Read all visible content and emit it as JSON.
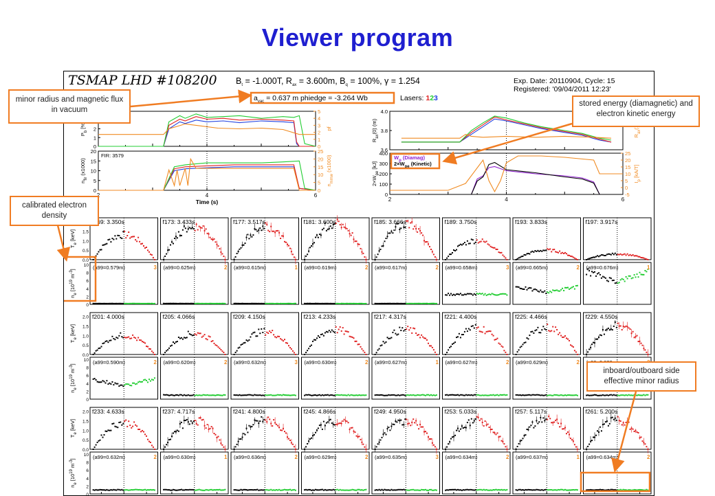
{
  "slide_title": "Viewer program",
  "header": {
    "program": "TSMAP LHD #108200",
    "params": "B",
    "params_t_sub": "t",
    "params_text_1": " = -1.000T, R",
    "params_ax_sub": "ax",
    "params_text_2": " = 3.600m, B",
    "params_q_sub": "q",
    "params_text_3": " = 100%, ",
    "gamma": "γ = 1.254",
    "vac_label": "a",
    "vac_sub": "vac",
    "vac_value": " = 0.637  m phiedge = -3.264 Wb",
    "exp_date": "Exp. Date: 20110904, Cycle: 15",
    "registered": "Registered: '09/04/2011 12:23'",
    "lasers_label": "Lasers:",
    "lasers": [
      "1",
      "2",
      "3"
    ]
  },
  "colors": {
    "title": "#1f1fd0",
    "callout_border": "#f07c22",
    "red": "#e02020",
    "green": "#20cc30",
    "blue": "#2040e0",
    "orange": "#f08a20",
    "purple": "#9020d0",
    "black": "#000000"
  },
  "callouts": {
    "minor_radius": "minor radius and magnetic flux in vacuum",
    "stored_energy": "stored energy (diamagnetic) and electron kinetic energy",
    "calibrated": "calibrated electron density",
    "inboard": "inboard/outboard side effective minor radius"
  },
  "chart_data": [
    {
      "type": "line",
      "panel": "beam-power",
      "xlim": [
        2,
        6
      ],
      "ylabel": "P",
      "ylabel_sub": "b",
      "ylabel_unit": " [%]",
      "ylim": [
        0,
        4
      ],
      "yticks": [
        "0",
        "1",
        "2",
        "3",
        "4"
      ],
      "y2label": "pf",
      "y2lim": [
        0,
        5
      ],
      "y2ticks": [
        "0",
        "1",
        "2",
        "3",
        "4",
        "5"
      ],
      "series": [
        {
          "color": "blue",
          "x": [
            2.0,
            3.2,
            3.3,
            3.5,
            3.6,
            3.8,
            4.0,
            4.3,
            4.6,
            5.0,
            5.4,
            5.6,
            5.65,
            5.7,
            6.0
          ],
          "y": [
            0,
            0,
            2.0,
            2.8,
            2.6,
            3.0,
            2.8,
            2.9,
            2.7,
            2.9,
            2.8,
            2.7,
            0.3,
            0,
            0
          ]
        },
        {
          "color": "red",
          "x": [
            2.0,
            3.2,
            3.3,
            3.5,
            3.6,
            3.8,
            4.0,
            4.3,
            4.6,
            5.0,
            5.4,
            5.6,
            5.65,
            5.7,
            6.0
          ],
          "y": [
            0,
            0,
            2.4,
            3.1,
            2.9,
            3.4,
            3.1,
            3.2,
            3.0,
            3.1,
            3.0,
            2.9,
            0.5,
            0,
            0
          ]
        },
        {
          "color": "green",
          "x": [
            2.0,
            3.2,
            3.3,
            3.5,
            3.6,
            3.8,
            4.0,
            4.3,
            4.6,
            5.0,
            5.4,
            5.6,
            5.7,
            5.8,
            6.0
          ],
          "y": [
            0,
            0,
            2.8,
            3.5,
            3.2,
            3.7,
            3.3,
            3.4,
            3.5,
            3.2,
            3.4,
            3.3,
            3.5,
            0.3,
            0
          ]
        },
        {
          "color": "orange",
          "axis": "y2",
          "x": [
            2.0,
            3.2,
            3.3,
            3.6,
            3.9,
            4.2,
            4.6,
            5.0,
            5.4,
            5.7,
            6.0
          ],
          "y": [
            1.7,
            1.7,
            2.5,
            3.2,
            2.9,
            2.6,
            2.5,
            2.6,
            2.4,
            1.7,
            1.7
          ]
        }
      ]
    },
    {
      "type": "line",
      "panel": "fir-density",
      "xlim": [
        2,
        6
      ],
      "ylabel": "n",
      "ylabel_sub": "fir",
      "ylabel_unit": " (x1000)",
      "ylim": [
        0,
        20
      ],
      "yticks": [
        "0",
        "5",
        "10",
        "15",
        "20"
      ],
      "y2label": "n",
      "y2label_sub": "mmw",
      "y2label_unit": " (x1000)",
      "y2lim": [
        0,
        25
      ],
      "y2ticks": [
        "0",
        "5",
        "10",
        "15",
        "20",
        "25"
      ],
      "annotation": "FIR: 3579",
      "xlabel": "Time (s)",
      "xticks": [
        "2",
        "4",
        "6"
      ],
      "series": [
        {
          "color": "blue",
          "x": [
            2.0,
            3.2,
            3.4,
            3.6,
            4.0,
            4.5,
            5.0,
            5.4,
            5.6,
            5.7,
            6.0
          ],
          "y": [
            0,
            0,
            10,
            11,
            11.5,
            12,
            12,
            12,
            12,
            1,
            0
          ]
        },
        {
          "color": "red",
          "x": [
            2.0,
            3.2,
            3.4,
            3.6,
            4.0,
            4.5,
            5.0,
            5.4,
            5.6,
            5.7,
            6.0
          ],
          "y": [
            0,
            0,
            11,
            12,
            12.5,
            13,
            13,
            13,
            13,
            1,
            0
          ]
        },
        {
          "color": "green",
          "x": [
            2.0,
            3.2,
            3.4,
            3.6,
            4.0,
            4.5,
            5.0,
            5.4,
            5.7,
            5.8,
            6.0
          ],
          "y": [
            0,
            0,
            12,
            13,
            14,
            14,
            14,
            14.5,
            15,
            1,
            0
          ]
        },
        {
          "color": "orange",
          "axis": "y2",
          "x": [
            2.0,
            3.2,
            3.3,
            3.4,
            3.45,
            3.5,
            3.6,
            3.65,
            3.7,
            3.8,
            4.0,
            4.5,
            5.0,
            5.4,
            5.6,
            5.7,
            6.0
          ],
          "y": [
            0,
            0,
            13,
            3,
            13,
            3,
            14,
            3,
            20,
            14,
            14,
            14,
            14,
            14,
            14,
            0,
            0
          ]
        }
      ]
    },
    {
      "type": "line",
      "panel": "axis-position",
      "xlim": [
        2,
        6
      ],
      "ylabel": "R",
      "ylabel_sub": "ax",
      "ylabel_unit": "(0) (m)",
      "ylim": [
        3.6,
        4.0
      ],
      "yticks": [
        "3.6",
        "3.8",
        "4.0"
      ],
      "y2label": "R",
      "y2label_sub": "ax",
      "y2label_unit": "(1)",
      "series": [
        {
          "color": "blue",
          "x": [
            2.2,
            3.2,
            3.4,
            3.6,
            3.8,
            4.0,
            4.3,
            4.6,
            5.0,
            5.3,
            5.6,
            5.8
          ],
          "y": [
            3.68,
            3.68,
            3.76,
            3.84,
            3.92,
            3.9,
            3.86,
            3.82,
            3.78,
            3.75,
            3.7,
            3.68
          ]
        },
        {
          "color": "red",
          "x": [
            2.2,
            3.2,
            3.4,
            3.6,
            3.8,
            4.0,
            4.3,
            4.6,
            5.0,
            5.3,
            5.6,
            5.8
          ],
          "y": [
            3.68,
            3.68,
            3.78,
            3.86,
            3.94,
            3.91,
            3.87,
            3.83,
            3.79,
            3.76,
            3.71,
            3.68
          ]
        },
        {
          "color": "green",
          "x": [
            2.2,
            3.2,
            3.4,
            3.6,
            3.8,
            4.0,
            4.3,
            4.6,
            5.0,
            5.3,
            5.6,
            5.8
          ],
          "y": [
            3.68,
            3.68,
            3.8,
            3.88,
            3.95,
            3.93,
            3.88,
            3.84,
            3.8,
            3.77,
            3.72,
            3.7
          ]
        },
        {
          "color": "orange",
          "x": [
            2.2,
            3.2,
            3.3,
            3.4,
            3.6,
            4.0,
            4.5,
            5.0,
            5.5,
            5.8
          ],
          "y": [
            3.72,
            3.72,
            3.76,
            3.74,
            3.73,
            3.74,
            3.73,
            3.74,
            3.73,
            3.72
          ]
        }
      ]
    },
    {
      "type": "line",
      "panel": "stored-energy",
      "xlim": [
        2,
        6
      ],
      "ylabel": "2×W",
      "ylabel_sub": "pe",
      "ylabel_unit": " [kJ]",
      "ylim": [
        0,
        400
      ],
      "yticks": [
        "0",
        "100",
        "200",
        "300",
        "400"
      ],
      "y2label": "I",
      "y2label_sub": "p",
      "y2label_unit": " [kA/T]",
      "y2lim": [
        -5,
        25
      ],
      "y2ticks": [
        "-5",
        "0",
        "5",
        "10",
        "15",
        "20",
        "25"
      ],
      "xticks": [
        "2",
        "4",
        "6"
      ],
      "legend": [
        {
          "text": "W",
          "sub": "p",
          "text2": " (Diamag)",
          "color": "purple"
        },
        {
          "text": "2×W",
          "sub": "pe",
          "text2": " (Kinetic)",
          "color": "black"
        }
      ],
      "series": [
        {
          "color": "purple",
          "x": [
            2.0,
            3.4,
            3.5,
            3.6,
            3.7,
            3.8,
            4.0,
            4.5,
            5.0,
            5.3,
            5.5,
            5.6,
            6.0
          ],
          "y": [
            0,
            0,
            150,
            180,
            260,
            270,
            230,
            200,
            180,
            160,
            120,
            0,
            0
          ]
        },
        {
          "color": "black",
          "x": [
            2.0,
            3.4,
            3.5,
            3.6,
            3.7,
            3.8,
            4.0,
            4.5,
            5.0,
            5.3,
            5.5,
            5.6,
            6.0
          ],
          "y": [
            0,
            0,
            130,
            170,
            290,
            310,
            240,
            210,
            170,
            150,
            110,
            0,
            0
          ]
        },
        {
          "color": "orange",
          "axis": "y2",
          "x": [
            2.0,
            3.0,
            3.3,
            3.6,
            3.7,
            3.8,
            3.9,
            4.0,
            4.2,
            4.6,
            5.0,
            5.5,
            5.6,
            6.0
          ],
          "y": [
            -2,
            -2,
            3,
            20,
            5,
            -3,
            5,
            18,
            23,
            23,
            22,
            20,
            10,
            10
          ]
        }
      ]
    },
    {
      "type": "scatter",
      "panel": "profile-grid",
      "columns": 8,
      "te_ylabel": "T",
      "te_ylabel_sub": "e",
      "te_ylabel_unit": " [keV]",
      "te_yticks": [
        "0.0",
        "0.5",
        "1.0",
        "1.5",
        "2.0"
      ],
      "ne_ylabel": "n",
      "ne_ylabel_sub": "e",
      "ne_ylabel_unit": " [10",
      "ne_ylabel_exp": "19",
      "ne_ylabel_unit2": " m",
      "ne_ylabel_exp2": "-3",
      "ne_ylabel_end": "]",
      "ne_yticks": [
        "0",
        "2",
        "4",
        "6",
        "8",
        "10"
      ],
      "xlabel": "r",
      "xlabel_sub": "eff",
      "xlabel_unit": " [m]",
      "xticks": [
        "-0.5",
        "0.0",
        "0.5"
      ],
      "frames": [
        {
          "label": "f169: 3.350s",
          "a99": "(a99=0.579m)",
          "laser": "3",
          "te_peak": 1.3,
          "ne_level": 0.2
        },
        {
          "label": "f173: 3.433s",
          "a99": "(a99=0.625m)",
          "laser": "2",
          "te_peak": 1.8,
          "ne_level": 0.2
        },
        {
          "label": "f177: 3.517s",
          "a99": "(a99=0.615m)",
          "laser": "1",
          "te_peak": 1.7,
          "ne_level": 0.2
        },
        {
          "label": "f181: 3.600s",
          "a99": "(a99=0.619m)",
          "laser": "2",
          "te_peak": 1.9,
          "ne_level": 0.2
        },
        {
          "label": "f185: 3.666s",
          "a99": "(a99=0.617m)",
          "laser": "2",
          "te_peak": 1.8,
          "ne_level": 0.2
        },
        {
          "label": "f189: 3.750s",
          "a99": "(a99=0.658m)",
          "laser": "3",
          "te_peak": 1.0,
          "ne_level": 2.5
        },
        {
          "label": "f193: 3.833s",
          "a99": "(a99=0.665m)",
          "laser": "2",
          "te_peak": 0.5,
          "ne_level": 4.0
        },
        {
          "label": "f197: 3.917s",
          "a99": "(a99=0.676m)",
          "laser": "1",
          "te_peak": 0.3,
          "ne_level": 7.5
        },
        {
          "label": "f201: 4.000s",
          "a99": "(a99=0.590m)",
          "laser": "2",
          "te_peak": 1.0,
          "ne_level": 4.5
        },
        {
          "label": "f205: 4.066s",
          "a99": "(a99=0.620m)",
          "laser": "2",
          "te_peak": 1.1,
          "ne_level": 1.0
        },
        {
          "label": "f209: 4.150s",
          "a99": "(a99=0.632m)",
          "laser": "3",
          "te_peak": 1.2,
          "ne_level": 1.0
        },
        {
          "label": "f213: 4.233s",
          "a99": "(a99=0.630m)",
          "laser": "2",
          "te_peak": 1.3,
          "ne_level": 1.0
        },
        {
          "label": "f217: 4.317s",
          "a99": "(a99=0.627m)",
          "laser": "1",
          "te_peak": 1.3,
          "ne_level": 1.0
        },
        {
          "label": "f221: 4.400s",
          "a99": "(a99=0.627m)",
          "laser": "2",
          "te_peak": 1.4,
          "ne_level": 1.0
        },
        {
          "label": "f225: 4.466s",
          "a99": "(a99=0.629m)",
          "laser": "2",
          "te_peak": 1.4,
          "ne_level": 1.0
        },
        {
          "label": "f229: 4.550s",
          "a99": "(a99=0.623m)",
          "laser": "3",
          "te_peak": 1.5,
          "ne_level": 1.0
        },
        {
          "label": "f233: 4.633s",
          "a99": "(a99=0.632m)",
          "laser": "2",
          "te_peak": 1.4,
          "ne_level": 1.0
        },
        {
          "label": "f237: 4.717s",
          "a99": "(a99=0.630m)",
          "laser": "1",
          "te_peak": 1.5,
          "ne_level": 1.0
        },
        {
          "label": "f241: 4.800s",
          "a99": "(a99=0.636m)",
          "laser": "2",
          "te_peak": 1.5,
          "ne_level": 1.0
        },
        {
          "label": "f245: 4.866s",
          "a99": "(a99=0.629m)",
          "laser": "2",
          "te_peak": 1.5,
          "ne_level": 1.0
        },
        {
          "label": "f249: 4.950s",
          "a99": "(a99=0.635m)",
          "laser": "3",
          "te_peak": 1.5,
          "ne_level": 1.0
        },
        {
          "label": "f253: 5.033s",
          "a99": "(a99=0.634m)",
          "laser": "2",
          "te_peak": 1.5,
          "ne_level": 1.0
        },
        {
          "label": "f257: 5.117s",
          "a99": "(a99=0.637m)",
          "laser": "1",
          "te_peak": 1.6,
          "ne_level": 1.0
        },
        {
          "label": "f261: 5.200s",
          "a99": "(a99=0.634m)",
          "laser": "2",
          "te_peak": 1.5,
          "ne_level": 1.0
        }
      ]
    }
  ]
}
